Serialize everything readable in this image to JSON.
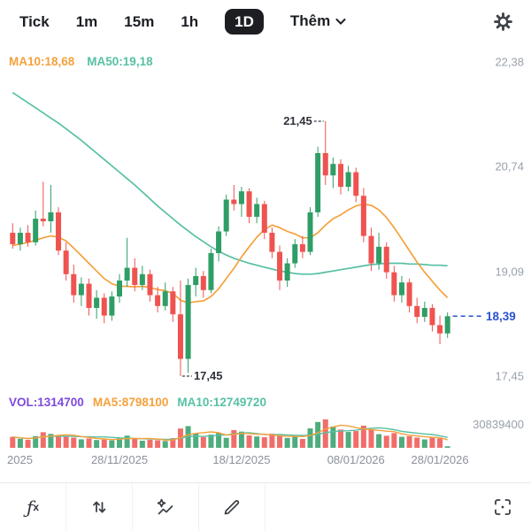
{
  "toolbar": {
    "intervals": [
      {
        "label": "Tick",
        "active": false
      },
      {
        "label": "1m",
        "active": false
      },
      {
        "label": "15m",
        "active": false
      },
      {
        "label": "1h",
        "active": false
      },
      {
        "label": "1D",
        "active": true
      }
    ],
    "more_label": "Thêm"
  },
  "price_chart": {
    "legend": {
      "ma10_label": "MA10:18,68",
      "ma50_label": "MA50:19,18"
    },
    "y_axis_labels": [
      "22,38",
      "20,74",
      "19,09",
      "17,45"
    ],
    "high_annotation": "21,45",
    "low_annotation": "17,45",
    "current_price_label": "18,39"
  },
  "volume_chart": {
    "legend": {
      "vol_label": "VOL:1314700",
      "ma5_label": "MA5:8798100",
      "ma10_label": "MA10:12749720"
    },
    "y_axis_label": "30839400"
  },
  "x_axis": {
    "labels": [
      "2025",
      "28/11/2025",
      "18/12/2025",
      "08/01/2026",
      "28/01/2026"
    ],
    "tick_indices": [
      1,
      14,
      30,
      45,
      56
    ]
  },
  "bottom_toolbar": {
    "fx_f": "ƒ",
    "fx_x": "x"
  },
  "icons": [
    "settings-icon",
    "chevron-down-icon",
    "function-icon",
    "up-down-arrows-icon",
    "sparkle-chart-icon",
    "pencil-icon",
    "screenshot-icon"
  ],
  "colors": {
    "up": "#2f9e66",
    "down": "#ef5350",
    "ma10": "#f5a13d",
    "ma50": "#57c0a5",
    "vol_purple": "#7e49df",
    "price_line": "#2a52cf",
    "axis_text": "#99a0ac",
    "active_pill": "#1d1e21"
  },
  "chart_data": {
    "type": "candlestick",
    "y_axis_ticks": [
      22.38,
      20.74,
      19.09,
      17.45
    ],
    "current_price": 18.39,
    "high_marker": {
      "index": 41,
      "price": 21.45
    },
    "low_marker": {
      "index": 22,
      "price": 17.45
    },
    "volume_axis_max": 30839400,
    "last_volume": 1314700,
    "ma5_volume_last": 8798100,
    "ma10_volume_last": 12749720,
    "candles": [
      [
        19.7,
        19.85,
        19.45,
        19.52
      ],
      [
        19.52,
        19.78,
        19.42,
        19.7
      ],
      [
        19.7,
        19.82,
        19.48,
        19.55
      ],
      [
        19.55,
        20.05,
        19.5,
        19.92
      ],
      [
        19.92,
        20.5,
        19.8,
        19.88
      ],
      [
        19.88,
        20.45,
        19.7,
        20.02
      ],
      [
        20.02,
        20.1,
        19.35,
        19.42
      ],
      [
        19.42,
        19.55,
        18.95,
        19.05
      ],
      [
        19.05,
        19.2,
        18.6,
        18.72
      ],
      [
        18.72,
        19.0,
        18.55,
        18.9
      ],
      [
        18.9,
        18.98,
        18.4,
        18.52
      ],
      [
        18.52,
        18.8,
        18.35,
        18.68
      ],
      [
        18.68,
        18.75,
        18.28,
        18.4
      ],
      [
        18.4,
        18.78,
        18.32,
        18.7
      ],
      [
        18.7,
        19.05,
        18.6,
        18.95
      ],
      [
        18.95,
        19.62,
        18.85,
        19.15
      ],
      [
        19.15,
        19.3,
        18.78,
        18.88
      ],
      [
        18.88,
        19.18,
        18.8,
        19.05
      ],
      [
        19.05,
        19.12,
        18.62,
        18.72
      ],
      [
        18.72,
        18.85,
        18.45,
        18.55
      ],
      [
        18.55,
        18.92,
        18.48,
        18.78
      ],
      [
        18.78,
        18.85,
        18.3,
        18.42
      ],
      [
        18.42,
        18.95,
        17.45,
        17.72
      ],
      [
        17.72,
        18.98,
        17.5,
        18.88
      ],
      [
        18.88,
        19.15,
        18.7,
        19.02
      ],
      [
        19.02,
        19.1,
        18.68,
        18.8
      ],
      [
        18.8,
        19.45,
        18.75,
        19.38
      ],
      [
        19.38,
        19.8,
        19.25,
        19.72
      ],
      [
        19.72,
        20.3,
        19.65,
        20.22
      ],
      [
        20.22,
        20.45,
        20.05,
        20.15
      ],
      [
        20.15,
        20.42,
        19.95,
        20.35
      ],
      [
        20.35,
        20.4,
        19.85,
        19.95
      ],
      [
        19.95,
        20.25,
        19.85,
        20.15
      ],
      [
        20.15,
        20.2,
        19.6,
        19.7
      ],
      [
        19.7,
        19.78,
        19.3,
        19.4
      ],
      [
        19.4,
        19.5,
        18.8,
        18.95
      ],
      [
        18.95,
        19.3,
        18.85,
        19.22
      ],
      [
        19.22,
        19.6,
        19.15,
        19.52
      ],
      [
        19.52,
        19.65,
        19.3,
        19.4
      ],
      [
        19.4,
        20.1,
        19.35,
        20.02
      ],
      [
        20.02,
        21.05,
        19.95,
        20.95
      ],
      [
        20.95,
        21.45,
        20.45,
        20.6
      ],
      [
        20.6,
        20.88,
        20.4,
        20.78
      ],
      [
        20.78,
        20.85,
        20.3,
        20.42
      ],
      [
        20.42,
        20.75,
        20.35,
        20.65
      ],
      [
        20.65,
        20.72,
        20.18,
        20.28
      ],
      [
        20.28,
        20.4,
        19.55,
        19.65
      ],
      [
        19.65,
        19.78,
        19.1,
        19.22
      ],
      [
        19.22,
        19.7,
        19.12,
        19.48
      ],
      [
        19.48,
        19.55,
        18.98,
        19.08
      ],
      [
        19.08,
        19.18,
        18.62,
        18.72
      ],
      [
        18.72,
        19.02,
        18.6,
        18.92
      ],
      [
        18.92,
        18.98,
        18.45,
        18.55
      ],
      [
        18.55,
        18.68,
        18.28,
        18.38
      ],
      [
        18.38,
        18.62,
        18.3,
        18.52
      ],
      [
        18.52,
        18.58,
        18.15,
        18.25
      ],
      [
        18.25,
        18.4,
        17.95,
        18.12
      ],
      [
        18.12,
        18.45,
        18.05,
        18.39
      ]
    ],
    "volumes": [
      9500000,
      7800000,
      6900000,
      10200000,
      13600000,
      12100000,
      11000000,
      9700000,
      8900000,
      7400000,
      8100000,
      6800000,
      7200000,
      6500000,
      8800000,
      10600000,
      7900000,
      6200000,
      7000000,
      6600000,
      5900000,
      8400000,
      16800000,
      18900000,
      12700000,
      9300000,
      11500000,
      13200000,
      8700000,
      15400000,
      14100000,
      10800000,
      9900000,
      9200000,
      12300000,
      10400000,
      8600000,
      9800000,
      7700000,
      16900000,
      22500000,
      24800000,
      18600000,
      15900000,
      13800000,
      14600000,
      19300000,
      16200000,
      11900000,
      10500000,
      12800000,
      9600000,
      10100000,
      8900000,
      7300000,
      9400000,
      8200000,
      1314700
    ],
    "ma10": [
      19.5,
      19.52,
      19.55,
      19.58,
      19.62,
      19.65,
      19.63,
      19.57,
      19.46,
      19.34,
      19.22,
      19.1,
      18.98,
      18.9,
      18.86,
      18.86,
      18.85,
      18.86,
      18.84,
      18.81,
      18.79,
      18.75,
      18.64,
      18.6,
      18.62,
      18.63,
      18.7,
      18.82,
      18.98,
      19.14,
      19.32,
      19.48,
      19.63,
      19.75,
      19.82,
      19.78,
      19.72,
      19.68,
      19.62,
      19.62,
      19.7,
      19.82,
      19.92,
      19.98,
      20.06,
      20.12,
      20.15,
      20.13,
      20.06,
      19.94,
      19.78,
      19.6,
      19.42,
      19.24,
      19.08,
      18.94,
      18.8,
      18.68
    ],
    "ma50": [
      21.9,
      21.82,
      21.74,
      21.66,
      21.58,
      21.5,
      21.42,
      21.33,
      21.24,
      21.15,
      21.05,
      20.95,
      20.85,
      20.75,
      20.65,
      20.55,
      20.45,
      20.34,
      20.23,
      20.12,
      20.02,
      19.92,
      19.82,
      19.73,
      19.64,
      19.56,
      19.48,
      19.41,
      19.35,
      19.3,
      19.26,
      19.22,
      19.19,
      19.16,
      19.13,
      19.1,
      19.08,
      19.06,
      19.05,
      19.05,
      19.06,
      19.08,
      19.1,
      19.12,
      19.14,
      19.16,
      19.18,
      19.2,
      19.21,
      19.22,
      19.22,
      19.22,
      19.21,
      19.21,
      19.2,
      19.19,
      19.19,
      19.18
    ]
  }
}
